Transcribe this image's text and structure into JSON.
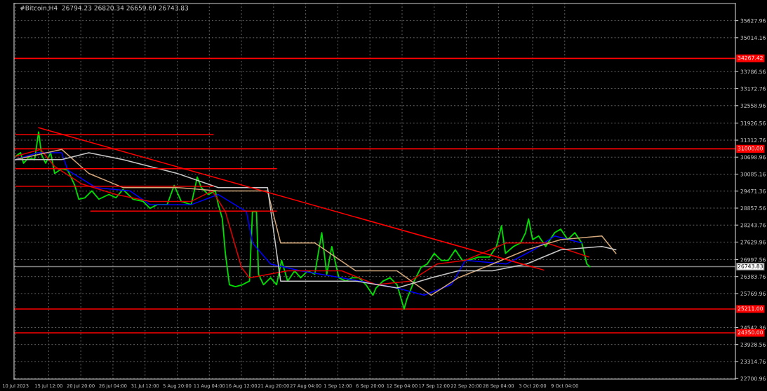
{
  "chart_data": {
    "type": "line",
    "title": "#Bitcoin,H4  26794.23 26820.34 26659.69 26743.83",
    "series": [
      {
        "color": "#00e000",
        "x": [
          "2023-07-10T00:00",
          "2023-07-10T20:00",
          "2023-07-11T08:00",
          "2023-07-12T04:00",
          "2023-07-13T04:00",
          "2023-07-13T20:00",
          "2023-07-14T08:00",
          "2023-07-15T00:00",
          "2023-07-15T20:00",
          "2023-07-16T12:00",
          "2023-07-17T16:00",
          "2023-07-18T16:00",
          "2023-07-19T20:00",
          "2023-07-20T12:00",
          "2023-07-21T12:00",
          "2023-07-22T16:00",
          "2023-07-23T20:00",
          "2023-07-25T12:00",
          "2023-07-26T16:00",
          "2023-07-27T20:00",
          "2023-07-29T12:00",
          "2023-07-31T04:00",
          "2023-08-01T08:00",
          "2023-08-02T12:00",
          "2023-08-04T04:00",
          "2023-08-05T08:00",
          "2023-08-06T12:00",
          "2023-08-08T04:00",
          "2023-08-09T04:00",
          "2023-08-09T20:00",
          "2023-08-11T00:00",
          "2023-08-12T04:00",
          "2023-08-12T16:00",
          "2023-08-13T08:00",
          "2023-08-13T20:00",
          "2023-08-14T12:00",
          "2023-08-15T12:00",
          "2023-08-16T16:00",
          "2023-08-17T20:00",
          "2023-08-18T08:00",
          "2023-08-19T00:00",
          "2023-08-19T08:00",
          "2023-08-20T04:00",
          "2023-08-21T08:00",
          "2023-08-22T08:00",
          "2023-08-23T04:00",
          "2023-08-24T04:00",
          "2023-08-25T08:00",
          "2023-08-26T08:00",
          "2023-08-27T12:00",
          "2023-08-28T16:00",
          "2023-08-29T20:00",
          "2023-08-30T16:00",
          "2023-08-31T12:00",
          "2023-09-01T16:00",
          "2023-09-02T20:00",
          "2023-09-03T20:00",
          "2023-09-05T00:00",
          "2023-09-06T04:00",
          "2023-09-07T08:00",
          "2023-09-07T20:00",
          "2023-09-09T00:00",
          "2023-09-10T04:00",
          "2023-09-11T08:00",
          "2023-09-12T12:00",
          "2023-09-13T00:00",
          "2023-09-14T04:00",
          "2023-09-15T08:00",
          "2023-09-16T08:00",
          "2023-09-17T12:00",
          "2023-09-18T16:00",
          "2023-09-19T20:00",
          "2023-09-21T00:00",
          "2023-09-22T04:00",
          "2023-09-23T04:00",
          "2023-09-24T20:00",
          "2023-09-26T16:00",
          "2023-09-27T20:00",
          "2023-09-28T16:00",
          "2023-09-29T08:00",
          "2023-09-30T16:00",
          "2023-10-01T20:00",
          "2023-10-02T16:00",
          "2023-10-03T04:00",
          "2023-10-03T20:00",
          "2023-10-04T20:00",
          "2023-10-06T00:00",
          "2023-10-07T12:00",
          "2023-10-08T12:00",
          "2023-10-09T16:00",
          "2023-10-10T20:00",
          "2023-10-12T00:00",
          "2023-10-12T20:00",
          "2023-10-13T08:00"
        ],
        "values": [
          30730,
          30860,
          30480,
          30680,
          30610,
          31610,
          30780,
          30480,
          30860,
          30110,
          30280,
          30230,
          29680,
          29180,
          29230,
          29480,
          29180,
          29350,
          29230,
          29530,
          29180,
          29100,
          28850,
          28980,
          28980,
          29680,
          29100,
          28980,
          29980,
          29600,
          29350,
          29480,
          28980,
          28470,
          27220,
          26090,
          26020,
          26090,
          26220,
          28730,
          28730,
          26470,
          26090,
          26340,
          26090,
          26970,
          26220,
          26590,
          26340,
          26590,
          26470,
          27970,
          26470,
          27470,
          26340,
          26220,
          26340,
          26340,
          26090,
          25710,
          25970,
          26220,
          26340,
          26090,
          25210,
          25590,
          26220,
          26720,
          26840,
          27220,
          26970,
          26970,
          27350,
          26970,
          26970,
          27090,
          27090,
          27470,
          28220,
          27220,
          27470,
          27600,
          27970,
          28470,
          27720,
          27850,
          27470,
          27970,
          28100,
          27720,
          27970,
          27600,
          26840,
          26740
        ]
      },
      {
        "color": "#0000ff",
        "x": [
          "2023-07-10T00:00",
          "2023-07-13T16:00",
          "2023-07-17T16:00",
          "2023-07-18T16:00",
          "2023-07-23T08:00",
          "2023-07-29T00:00",
          "2023-08-01T08:00",
          "2023-08-08T04:00",
          "2023-08-12T16:00",
          "2023-08-17T08:00",
          "2023-08-18T08:00",
          "2023-08-21T08:00",
          "2023-08-26T08:00",
          "2023-09-02T04:00",
          "2023-09-11T08:00",
          "2023-09-15T20:00",
          "2023-09-20T08:00",
          "2023-09-22T16:00",
          "2023-09-29T12:00",
          "2023-10-04T00:00",
          "2023-10-07T12:00",
          "2023-10-12T00:00"
        ],
        "values": [
          30610,
          30860,
          30860,
          30230,
          29600,
          29480,
          28980,
          28980,
          29350,
          28730,
          27600,
          26840,
          26590,
          26340,
          25970,
          25710,
          26090,
          26970,
          26840,
          27350,
          27850,
          27600
        ]
      },
      {
        "color": "#e00000",
        "x": [
          "2023-07-10T00:00",
          "2023-07-14T04:00",
          "2023-07-16T12:00",
          "2023-07-21T00:00",
          "2023-07-26T16:00",
          "2023-08-01T08:00",
          "2023-08-08T04:00",
          "2023-08-11T16:00",
          "2023-08-13T20:00",
          "2023-08-16T12:00",
          "2023-08-17T20:00",
          "2023-08-24T04:00",
          "2023-09-02T04:00",
          "2023-09-07T20:00",
          "2023-09-13T12:00",
          "2023-09-18T00:00",
          "2023-09-22T16:00",
          "2023-09-29T12:00",
          "2023-10-06T04:00",
          "2023-10-13T04:00"
        ],
        "values": [
          30730,
          30980,
          30360,
          29730,
          29350,
          29100,
          29100,
          29480,
          28730,
          26720,
          26340,
          26590,
          26590,
          26090,
          26220,
          26840,
          26970,
          27600,
          27600,
          27090
        ]
      },
      {
        "color": "#d2a679",
        "x": [
          "2023-07-10T00:00",
          "2023-07-17T16:00",
          "2023-07-22T04:00",
          "2023-07-27T20:00",
          "2023-08-05T20:00",
          "2023-08-12T16:00",
          "2023-08-20T20:00",
          "2023-08-23T00:00",
          "2023-08-28T16:00",
          "2023-09-04T12:00",
          "2023-09-11T08:00",
          "2023-09-17T00:00",
          "2023-09-21T12:00",
          "2023-09-27T04:00",
          "2023-10-02T20:00",
          "2023-10-08T12:00",
          "2023-10-15T08:00",
          "2023-10-17T16:00"
        ],
        "values": [
          30610,
          30980,
          30110,
          29600,
          29600,
          29480,
          29480,
          27600,
          27600,
          26590,
          26590,
          25710,
          26340,
          26840,
          27350,
          27720,
          27850,
          27220
        ]
      },
      {
        "color": "#c8c8c8",
        "x": [
          "2023-07-10T00:00",
          "2023-07-17T16:00",
          "2023-07-22T04:00",
          "2023-07-27T20:00",
          "2023-08-05T20:00",
          "2023-08-12T16:00",
          "2023-08-20T20:00",
          "2023-08-23T00:00",
          "2023-09-04T12:00",
          "2023-09-11T08:00",
          "2023-09-17T00:00",
          "2023-09-21T12:00",
          "2023-09-27T04:00",
          "2023-10-02T20:00",
          "2023-10-08T12:00",
          "2023-10-15T08:00",
          "2023-10-17T16:00"
        ],
        "values": [
          30610,
          30610,
          30860,
          30610,
          30110,
          29600,
          29600,
          26220,
          26220,
          25970,
          26340,
          26590,
          26590,
          26840,
          27350,
          27470,
          27350
        ]
      },
      {
        "color": "#ff0000",
        "x": [
          "2023-07-13T20:00",
          "2023-10-05T16:00"
        ],
        "values": [
          31760,
          26620
        ]
      },
      {
        "color": "#ff0000",
        "x": [
          "2023-07-10T00:00",
          "2023-08-11T20:00"
        ],
        "values": [
          31510,
          31510
        ]
      },
      {
        "color": "#ff0000",
        "x": [
          "2023-07-10T00:00",
          "2023-08-22T08:00"
        ],
        "values": [
          30280,
          30280
        ]
      },
      {
        "color": "#ff0000",
        "x": [
          "2023-07-10T00:00",
          "2023-08-11T20:00"
        ],
        "values": [
          29650,
          29650
        ]
      },
      {
        "color": "#ff0000",
        "x": [
          "2023-07-22T12:00",
          "2023-08-22T08:00"
        ],
        "values": [
          28750,
          28750
        ]
      }
    ],
    "ref_lines": [
      {
        "axis": "y",
        "value": 34267.42,
        "label": "34267.42",
        "color": "#ff0000"
      },
      {
        "axis": "y",
        "value": 31000.0,
        "label": "31000.00",
        "color": "#ff0000"
      },
      {
        "axis": "y",
        "value": 26743.83,
        "label": "26743.83",
        "color": "#808080"
      },
      {
        "axis": "y",
        "value": 25211.0,
        "label": "25211.00",
        "color": "#ff0000"
      },
      {
        "axis": "y",
        "value": 24350.0,
        "label": "24350.00",
        "color": "#ff0000"
      }
    ],
    "xlim": [
      "2023-07-09T18:00",
      "2023-11-06T12:00"
    ],
    "xticks": [
      {
        "value": "2023-07-10T00:00",
        "label": "10 Jul 2023"
      },
      {
        "value": "2023-07-15T12:00",
        "label": "15 Jul 12:00"
      },
      {
        "value": "2023-07-20T20:00",
        "label": "20 Jul 20:00"
      },
      {
        "value": "2023-07-26T04:00",
        "label": "26 Jul 04:00"
      },
      {
        "value": "2023-07-31T12:00",
        "label": "31 Jul 12:00"
      },
      {
        "value": "2023-08-05T20:00",
        "label": "5 Aug 20:00"
      },
      {
        "value": "2023-08-11T04:00",
        "label": "11 Aug 04:00"
      },
      {
        "value": "2023-08-16T12:00",
        "label": "16 Aug 12:00"
      },
      {
        "value": "2023-08-21T20:00",
        "label": "21 Aug 20:00"
      },
      {
        "value": "2023-08-27T04:00",
        "label": "27 Aug 04:00"
      },
      {
        "value": "2023-09-01T12:00",
        "label": "1 Sep 12:00"
      },
      {
        "value": "2023-09-06T20:00",
        "label": "6 Sep 20:00"
      },
      {
        "value": "2023-09-12T04:00",
        "label": "12 Sep 04:00"
      },
      {
        "value": "2023-09-17T12:00",
        "label": "17 Sep 12:00"
      },
      {
        "value": "2023-09-22T20:00",
        "label": "22 Sep 20:00"
      },
      {
        "value": "2023-09-28T04:00",
        "label": "28 Sep 04:00"
      },
      {
        "value": "2023-10-03T20:00",
        "label": "3 Oct 20:00"
      },
      {
        "value": "2023-10-09T04:00",
        "label": "9 Oct 04:00"
      }
    ],
    "ylim": [
      22680,
      36250
    ],
    "yticks": [
      35627.96,
      35014.16,
      33786.56,
      33172.76,
      32558.96,
      31926.56,
      31312.76,
      30698.96,
      30085.16,
      29471.36,
      28857.56,
      28243.76,
      27629.96,
      26997.56,
      26383.76,
      25769.96,
      24542.36,
      23928.56,
      23314.76,
      22700.96
    ],
    "grid": true,
    "legend": false,
    "marker": "none",
    "line_style": "solid"
  }
}
